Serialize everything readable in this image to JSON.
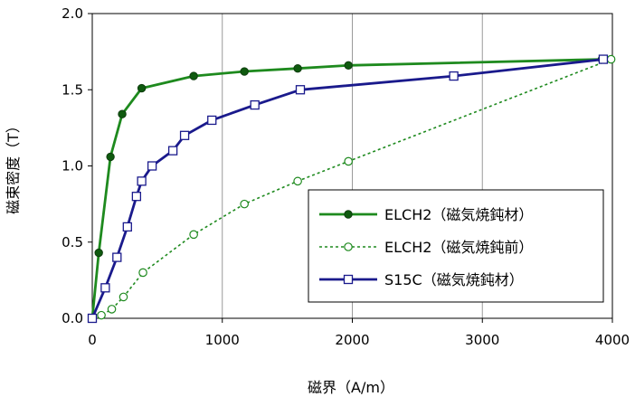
{
  "chart_data": {
    "type": "line",
    "title": "",
    "xlabel": "磁界（A/m）",
    "ylabel": "磁束密度（T）",
    "xlim": [
      0,
      4000
    ],
    "ylim": [
      0,
      2.0
    ],
    "x_ticks": [
      0,
      1000,
      2000,
      3000,
      4000
    ],
    "y_ticks": [
      0.0,
      0.5,
      1.0,
      1.5,
      2.0
    ],
    "x_tick_labels": [
      "0",
      "1000",
      "2000",
      "3000",
      "4000"
    ],
    "y_tick_labels": [
      "0.0",
      "0.5",
      "1.0",
      "1.5",
      "2.0"
    ],
    "grid": "vertical lines at x ticks",
    "legend_position": "center-right",
    "series": [
      {
        "name": "ELCH2（磁気焼鈍材）",
        "color": "#1e8a1e",
        "line_style": "solid",
        "marker": "filled-circle",
        "points": [
          [
            0,
            0.0
          ],
          [
            50,
            0.43
          ],
          [
            140,
            1.06
          ],
          [
            230,
            1.34
          ],
          [
            380,
            1.51
          ],
          [
            780,
            1.59
          ],
          [
            1170,
            1.62
          ],
          [
            1580,
            1.64
          ],
          [
            1970,
            1.66
          ],
          [
            3920,
            1.7
          ]
        ]
      },
      {
        "name": "ELCH2（磁気焼鈍前）",
        "color": "#1e8a1e",
        "line_style": "dotted",
        "marker": "open-circle",
        "points": [
          [
            0,
            0.0
          ],
          [
            70,
            0.02
          ],
          [
            150,
            0.06
          ],
          [
            240,
            0.14
          ],
          [
            390,
            0.3
          ],
          [
            780,
            0.55
          ],
          [
            1170,
            0.75
          ],
          [
            1580,
            0.9
          ],
          [
            1970,
            1.03
          ],
          [
            3990,
            1.7
          ]
        ]
      },
      {
        "name": "S15C（磁気焼鈍材）",
        "color": "#1a1a8c",
        "line_style": "solid",
        "marker": "open-square",
        "points": [
          [
            0,
            0.0
          ],
          [
            100,
            0.2
          ],
          [
            190,
            0.4
          ],
          [
            270,
            0.6
          ],
          [
            340,
            0.8
          ],
          [
            380,
            0.9
          ],
          [
            460,
            1.0
          ],
          [
            620,
            1.1
          ],
          [
            710,
            1.2
          ],
          [
            920,
            1.3
          ],
          [
            1250,
            1.4
          ],
          [
            1600,
            1.5
          ],
          [
            2780,
            1.59
          ],
          [
            3930,
            1.7
          ]
        ]
      }
    ]
  }
}
